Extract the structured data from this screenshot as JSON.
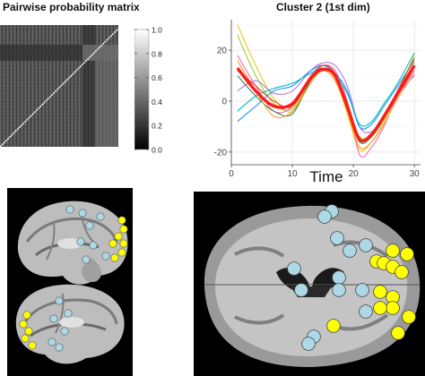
{
  "panels": {
    "matrix_title": "Pairwise probability matrix",
    "cluster_title": "Cluster 2 (1st dim)"
  },
  "colorbar": {
    "ticks": [
      "1.0",
      "0.8",
      "0.6",
      "0.4",
      "0.2",
      "0.0"
    ],
    "tick_values": [
      1.0,
      0.8,
      0.6,
      0.4,
      0.2,
      0.0
    ]
  },
  "chart_data": [
    {
      "type": "heatmap",
      "title": "Pairwise probability matrix",
      "value_range": [
        0.0,
        1.0
      ],
      "diagonal_value": 1.0
    },
    {
      "type": "line",
      "title": "Cluster 2 (1st dim)",
      "xlabel": "Time",
      "ylabel": "",
      "xlim": [
        0,
        31
      ],
      "ylim": [
        -25,
        32
      ],
      "xticks": [
        0,
        10,
        20,
        30
      ],
      "yticks": [
        -20,
        0,
        20
      ],
      "grid": true,
      "x": [
        1,
        4,
        7,
        10,
        13,
        15,
        17,
        19,
        21,
        23,
        25,
        27,
        30
      ],
      "series": [
        {
          "color": "#e6cf1a",
          "values": [
            30,
            14,
            1,
            -4,
            9,
            13,
            9,
            -5,
            -19,
            -16,
            -8,
            2,
            18
          ]
        },
        {
          "color": "#9acd32",
          "values": [
            26,
            10,
            -1,
            -3,
            8,
            12,
            10,
            -2,
            -14,
            -13,
            -6,
            3,
            15
          ]
        },
        {
          "color": "#ff69b4",
          "values": [
            18,
            6,
            -4,
            -2,
            10,
            14,
            12,
            0,
            -21,
            -18,
            -10,
            1,
            12
          ]
        },
        {
          "color": "#b07ae0",
          "values": [
            4,
            8,
            3,
            4,
            12,
            15,
            14,
            6,
            -10,
            -12,
            -6,
            2,
            10
          ]
        },
        {
          "color": "#1e90ff",
          "values": [
            -8,
            -2,
            4,
            6,
            12,
            14,
            11,
            4,
            -10,
            -9,
            -2,
            5,
            16
          ]
        },
        {
          "color": "#00bfc4",
          "values": [
            -4,
            2,
            5,
            7,
            11,
            13,
            10,
            3,
            -9,
            -8,
            -1,
            6,
            19
          ]
        },
        {
          "color": "#2e8b57",
          "values": [
            10,
            2,
            -4,
            -5,
            8,
            12,
            10,
            -3,
            -16,
            -14,
            -7,
            2,
            14
          ]
        },
        {
          "color": "#f0a030",
          "values": [
            16,
            4,
            -6,
            -4,
            7,
            12,
            8,
            -4,
            -18,
            -16,
            -9,
            0,
            11
          ]
        },
        {
          "color": "#e64a19",
          "values": [
            12,
            6,
            0,
            -2,
            9,
            14,
            11,
            -1,
            -15,
            -13,
            -6,
            3,
            17
          ]
        },
        {
          "color": "#ff1a1a",
          "values": [
            13,
            4,
            -2,
            -1,
            9,
            12.5,
            10,
            -2,
            -15,
            -13,
            -6,
            2,
            14
          ],
          "emphasis": true
        }
      ]
    }
  ],
  "brain_markers": {
    "blue_color": "#add8e6",
    "yellow_color": "#ffff00"
  }
}
